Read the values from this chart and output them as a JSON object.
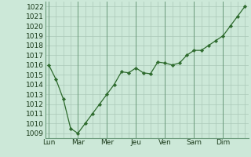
{
  "x_values": [
    0,
    1,
    2,
    3,
    4,
    5,
    6,
    7,
    8,
    9,
    10,
    11,
    12,
    13,
    14,
    15,
    16,
    17,
    18,
    19,
    20,
    21,
    22,
    23,
    24,
    25,
    26,
    27
  ],
  "y_values": [
    1016,
    1014.5,
    1012.5,
    1009.5,
    1009,
    1010,
    1011,
    1012,
    1013,
    1014,
    1015.3,
    1015.2,
    1015.7,
    1015.2,
    1015.1,
    1016.3,
    1016.2,
    1016,
    1016.2,
    1017,
    1017.5,
    1017.5,
    1018,
    1018.5,
    1019,
    1020,
    1021,
    1022
  ],
  "ylim_min": 1008.5,
  "ylim_max": 1022.5,
  "yticks": [
    1009,
    1010,
    1011,
    1012,
    1013,
    1014,
    1015,
    1016,
    1017,
    1018,
    1019,
    1020,
    1021,
    1022
  ],
  "day_positions": [
    0,
    4,
    8,
    12,
    16,
    20,
    24
  ],
  "day_labels": [
    "Lun",
    "Mar",
    "Mer",
    "Jeu",
    "Ven",
    "Sam",
    "Dim"
  ],
  "xlim_min": -0.5,
  "xlim_max": 27.5,
  "line_color": "#2d6a2d",
  "marker_color": "#2d6a2d",
  "bg_color": "#cce8d8",
  "grid_color": "#aac8b8",
  "vline_color": "#6a9a7a",
  "tick_label_color": "#1a3a1a",
  "font_size": 6.5,
  "linewidth": 0.9,
  "markersize": 2.2
}
